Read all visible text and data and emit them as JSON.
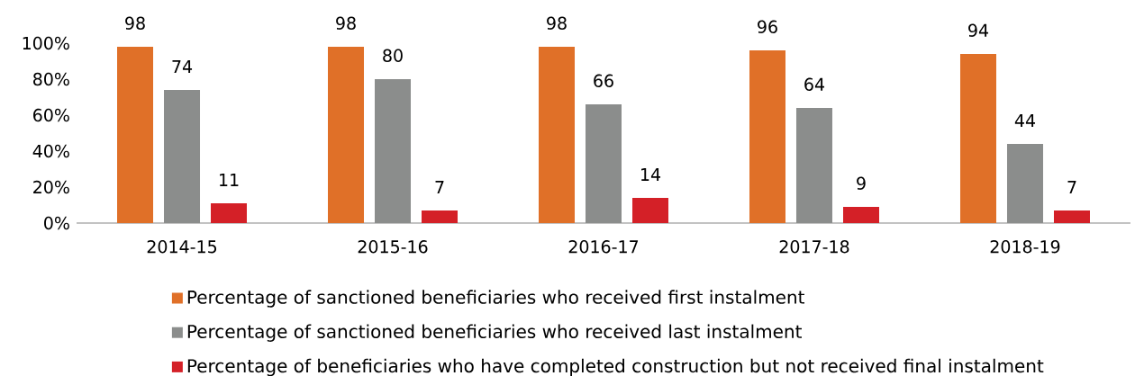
{
  "chart_data": {
    "type": "bar",
    "categories": [
      "2014-15",
      "2015-16",
      "2016-17",
      "2017-18",
      "2018-19"
    ],
    "series": [
      {
        "name": "Percentage of sanctioned beneficiaries who received first instalment",
        "color": "#e07028",
        "values": [
          98,
          98,
          98,
          96,
          94
        ]
      },
      {
        "name": "Percentage of sanctioned beneficiaries who received last instalment",
        "color": "#8b8d8c",
        "values": [
          74,
          80,
          66,
          64,
          44
        ]
      },
      {
        "name": "Percentage of beneficiaries who have completed construction but not received final instalment",
        "color": "#d42027",
        "values": [
          11,
          7,
          14,
          9,
          7
        ]
      }
    ],
    "ylim": [
      0,
      100
    ],
    "yticks": [
      {
        "value": 0,
        "label": "0%"
      },
      {
        "value": 20,
        "label": "20%"
      },
      {
        "value": 40,
        "label": "40%"
      },
      {
        "value": 60,
        "label": "60%"
      },
      {
        "value": 80,
        "label": "80%"
      },
      {
        "value": 100,
        "label": "100%"
      }
    ],
    "data_labels": true,
    "grid": false,
    "legend": "bottom"
  }
}
